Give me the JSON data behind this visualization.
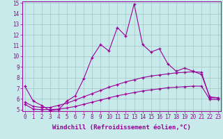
{
  "bg_color": "#c8eaea",
  "grid_color": "#a8cccc",
  "line_color": "#990099",
  "x_min": 0,
  "x_max": 23,
  "y_min": 5,
  "y_max": 15,
  "xlabel": "Windchill (Refroidissement éolien,°C)",
  "xlabel_fontsize": 6.5,
  "xtick_labels": [
    "0",
    "1",
    "2",
    "3",
    "4",
    "5",
    "6",
    "7",
    "8",
    "9",
    "10",
    "11",
    "12",
    "13",
    "14",
    "15",
    "16",
    "17",
    "18",
    "19",
    "20",
    "21",
    "22",
    "23"
  ],
  "ytick_labels": [
    "5",
    "6",
    "7",
    "8",
    "9",
    "10",
    "11",
    "12",
    "13",
    "14",
    "15"
  ],
  "line1_x": [
    0,
    1,
    2,
    3,
    4,
    5,
    6,
    7,
    8,
    9,
    10,
    11,
    12,
    13,
    14,
    15,
    16,
    17,
    18,
    19,
    20,
    21,
    22,
    23
  ],
  "line1_y": [
    7.2,
    5.8,
    5.4,
    4.9,
    5.0,
    5.8,
    6.3,
    7.9,
    9.9,
    11.1,
    10.5,
    12.7,
    11.9,
    14.9,
    11.1,
    10.4,
    10.7,
    9.3,
    8.6,
    8.9,
    8.6,
    8.3,
    6.2,
    6.1
  ],
  "line2_x": [
    0,
    1,
    2,
    3,
    4,
    5,
    6,
    7,
    8,
    9,
    10,
    11,
    12,
    13,
    14,
    15,
    16,
    17,
    18,
    19,
    20,
    21,
    22,
    23
  ],
  "line2_y": [
    5.7,
    5.3,
    5.2,
    5.2,
    5.4,
    5.6,
    5.9,
    6.2,
    6.5,
    6.8,
    7.1,
    7.35,
    7.6,
    7.8,
    8.0,
    8.15,
    8.25,
    8.35,
    8.45,
    8.5,
    8.55,
    8.5,
    6.1,
    6.1
  ],
  "line3_x": [
    0,
    1,
    2,
    3,
    4,
    5,
    6,
    7,
    8,
    9,
    10,
    11,
    12,
    13,
    14,
    15,
    16,
    17,
    18,
    19,
    20,
    21,
    22,
    23
  ],
  "line3_y": [
    5.5,
    5.05,
    5.0,
    5.0,
    5.05,
    5.15,
    5.3,
    5.5,
    5.7,
    5.9,
    6.1,
    6.3,
    6.45,
    6.6,
    6.75,
    6.85,
    6.95,
    7.05,
    7.1,
    7.15,
    7.2,
    7.2,
    5.95,
    5.95
  ]
}
